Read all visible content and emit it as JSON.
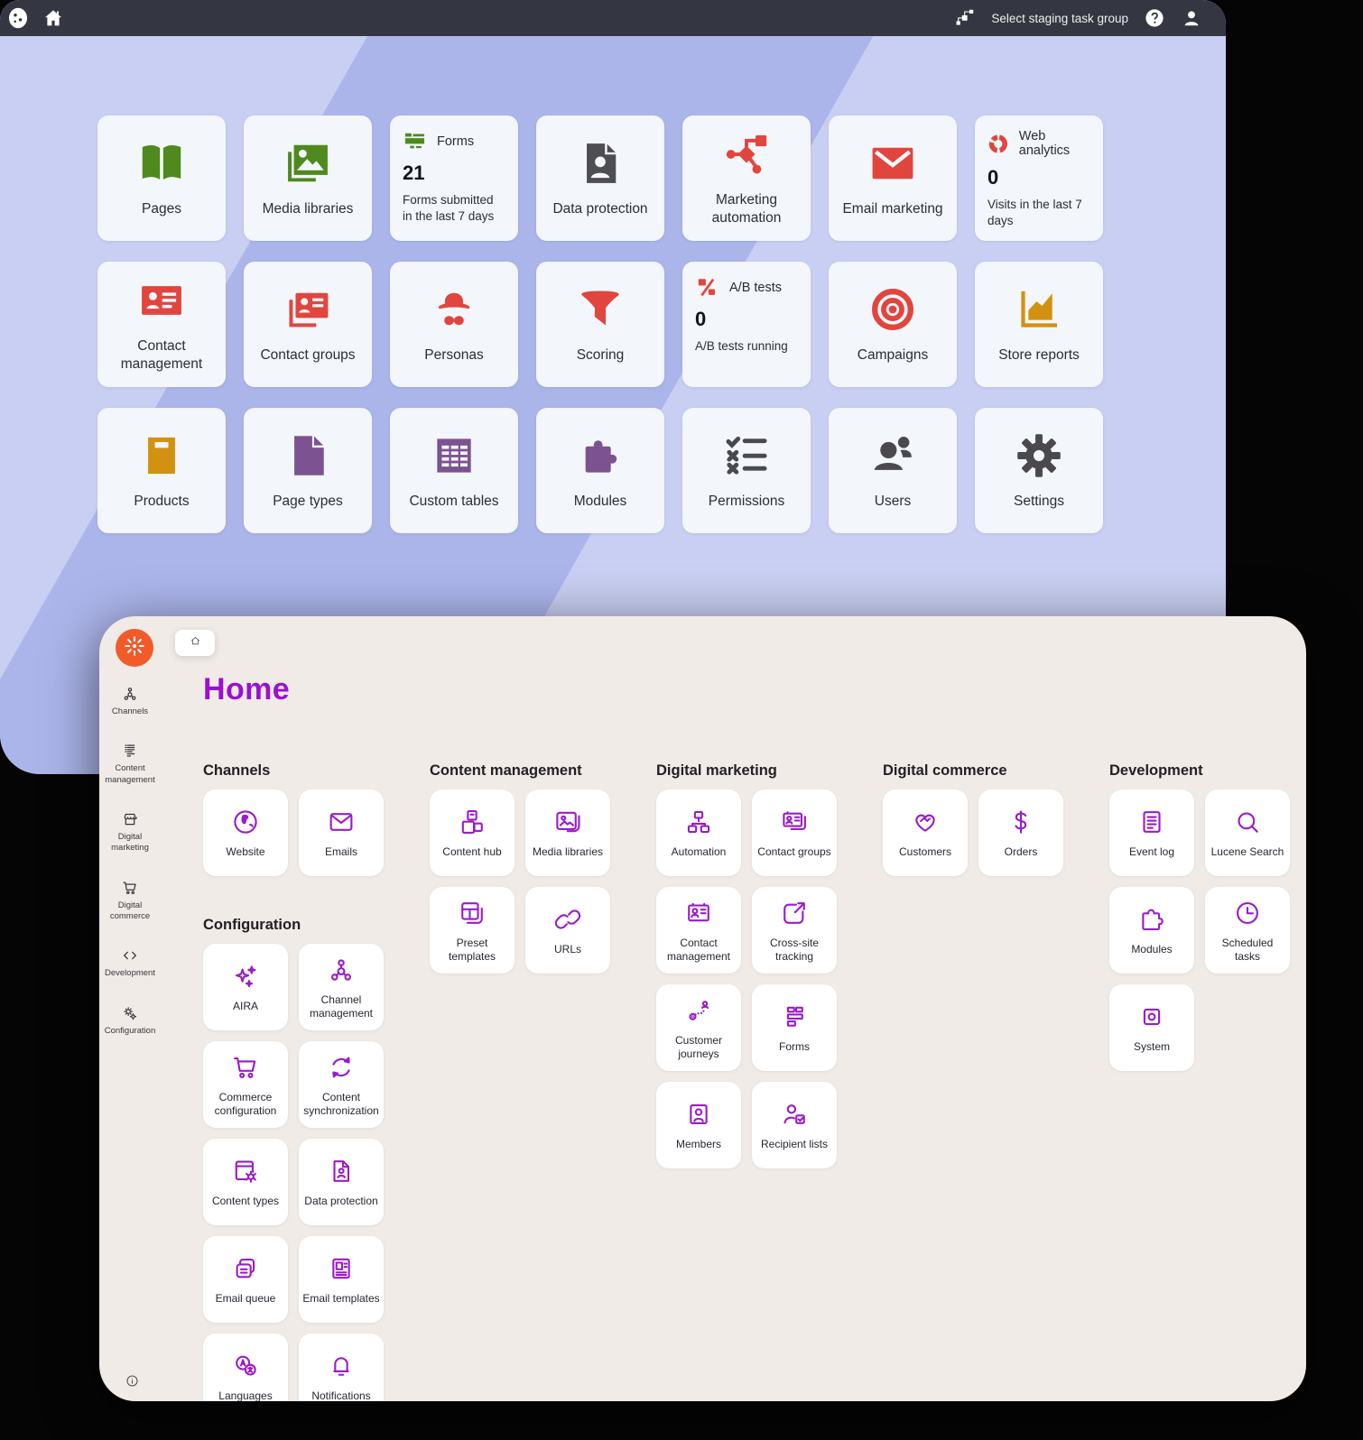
{
  "topbar": {
    "staging_label": "Select staging task group"
  },
  "old_ui": {
    "tiles": [
      {
        "label": "Pages",
        "icon": "book",
        "color": "green"
      },
      {
        "label": "Media libraries",
        "icon": "media",
        "color": "green"
      },
      {
        "type": "stat",
        "title": "Forms",
        "icon": "forms",
        "color": "green",
        "value": "21",
        "desc": "Forms submitted in the last 7 days"
      },
      {
        "label": "Data protection",
        "icon": "docperson",
        "color": "gray"
      },
      {
        "label": "Marketing automation",
        "icon": "automation",
        "color": "red"
      },
      {
        "label": "Email marketing",
        "icon": "envelope",
        "color": "red"
      },
      {
        "type": "stat",
        "title": "Web analytics",
        "icon": "donut",
        "color": "red",
        "value": "0",
        "desc": "Visits in the last 7 days"
      },
      {
        "label": "Contact management",
        "icon": "contactcard",
        "color": "red"
      },
      {
        "label": "Contact groups",
        "icon": "contactcards",
        "color": "red"
      },
      {
        "label": "Personas",
        "icon": "persona",
        "color": "red"
      },
      {
        "label": "Scoring",
        "icon": "funnel",
        "color": "red"
      },
      {
        "type": "stat",
        "title": "A/B tests",
        "icon": "ab",
        "color": "red",
        "value": "0",
        "desc": "A/B tests running"
      },
      {
        "label": "Campaigns",
        "icon": "target",
        "color": "red"
      },
      {
        "label": "Store reports",
        "icon": "areachart",
        "color": "orange"
      },
      {
        "label": "Products",
        "icon": "product",
        "color": "orange"
      },
      {
        "label": "Page types",
        "icon": "page",
        "color": "purple"
      },
      {
        "label": "Custom tables",
        "icon": "table",
        "color": "purple"
      },
      {
        "label": "Modules",
        "icon": "puzzle",
        "color": "purple"
      },
      {
        "label": "Permissions",
        "icon": "checklist",
        "color": "dark"
      },
      {
        "label": "Users",
        "icon": "users",
        "color": "dark"
      },
      {
        "label": "Settings",
        "icon": "gear",
        "color": "dark"
      }
    ]
  },
  "new_ui": {
    "title": "Home",
    "sidebar": [
      {
        "label": "Channels",
        "icon": "sbchannels"
      },
      {
        "label": "Content management",
        "icon": "sbcontent"
      },
      {
        "label": "Digital marketing",
        "icon": "sbstore"
      },
      {
        "label": "Digital commerce",
        "icon": "sbcart"
      },
      {
        "label": "Development",
        "icon": "sbdev"
      },
      {
        "label": "Configuration",
        "icon": "sbconfig"
      }
    ],
    "columns": [
      {
        "sections": [
          {
            "title": "Channels",
            "tiles": [
              {
                "label": "Website",
                "icon": "globe"
              },
              {
                "label": "Emails",
                "icon": "mail"
              }
            ]
          },
          {
            "title": "Configuration",
            "tiles": [
              {
                "label": "AIRA",
                "icon": "aira"
              },
              {
                "label": "Channel management",
                "icon": "chmgmt"
              },
              {
                "label": "Commerce configuration",
                "icon": "cart"
              },
              {
                "label": "Content synchronization",
                "icon": "sync"
              },
              {
                "label": "Content types",
                "icon": "ctypes"
              },
              {
                "label": "Data protection",
                "icon": "dpdoc"
              },
              {
                "label": "Email queue",
                "icon": "equeue"
              },
              {
                "label": "Email templates",
                "icon": "etemplates"
              },
              {
                "label": "Languages",
                "icon": "languages"
              },
              {
                "label": "Notifications",
                "icon": "bell"
              }
            ]
          }
        ]
      },
      {
        "sections": [
          {
            "title": "Content management",
            "tiles": [
              {
                "label": "Content hub",
                "icon": "contenthub"
              },
              {
                "label": "Media libraries",
                "icon": "medialib"
              },
              {
                "label": "Preset templates",
                "icon": "preset"
              },
              {
                "label": "URLs",
                "icon": "urls"
              }
            ]
          }
        ]
      },
      {
        "sections": [
          {
            "title": "Digital marketing",
            "tiles": [
              {
                "label": "Automation",
                "icon": "dmauto"
              },
              {
                "label": "Contact groups",
                "icon": "cgroups"
              },
              {
                "label": "Contact management",
                "icon": "cmgmt"
              },
              {
                "label": "Cross-site tracking",
                "icon": "crosssite"
              },
              {
                "label": "Customer journeys",
                "icon": "journeys"
              },
              {
                "label": "Forms",
                "icon": "formsblocks"
              },
              {
                "label": "Members",
                "icon": "members"
              },
              {
                "label": "Recipient lists",
                "icon": "recipients"
              }
            ]
          }
        ]
      },
      {
        "sections": [
          {
            "title": "Digital commerce",
            "tiles": [
              {
                "label": "Customers",
                "icon": "customers"
              },
              {
                "label": "Orders",
                "icon": "orders"
              }
            ]
          }
        ]
      },
      {
        "sections": [
          {
            "title": "Development",
            "tiles": [
              {
                "label": "Event log",
                "icon": "eventlog"
              },
              {
                "label": "Lucene Search",
                "icon": "lucene"
              },
              {
                "label": "Modules",
                "icon": "nmodules"
              },
              {
                "label": "Scheduled tasks",
                "icon": "clock"
              },
              {
                "label": "System",
                "icon": "system"
              }
            ]
          }
        ]
      }
    ]
  },
  "colors": {
    "topbar_bg": "#343741",
    "old_bg_light": "#c9cff2",
    "old_bg_dark": "#abb5ea",
    "old_tile_bg": "#f3f6fb",
    "green": "#4e8a1d",
    "red": "#e1463e",
    "orange": "#d29110",
    "purple_old": "#7c5390",
    "dark_gray": "#4a4a4e",
    "card_bg": "#f0ebe7",
    "accent_purple": "#9a1cc8",
    "title_purple": "#9b10d0",
    "logo_orange": "#f15b2a"
  }
}
